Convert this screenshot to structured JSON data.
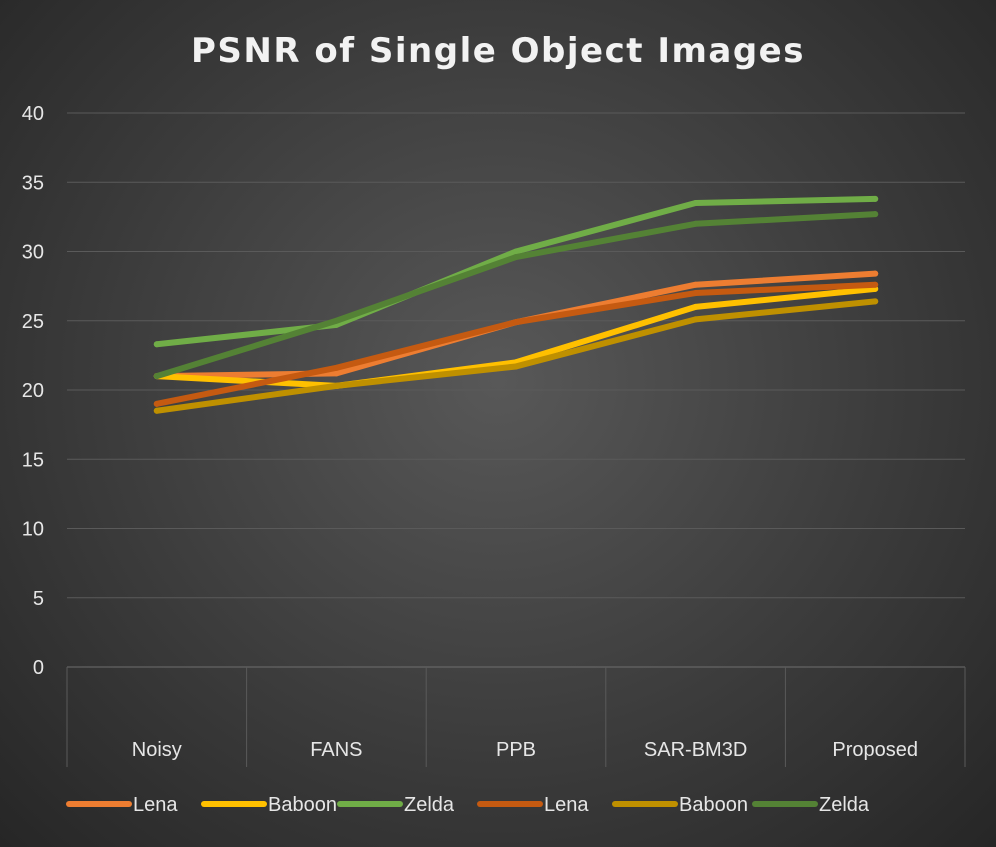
{
  "chart_data": {
    "type": "line",
    "title": "PSNR of Single Object Images",
    "xlabel": "",
    "ylabel": "",
    "categories": [
      "Noisy",
      "FANS",
      "PPB",
      "SAR-BM3D",
      "Proposed"
    ],
    "ylim": [
      0,
      40
    ],
    "yticks": [
      0,
      5,
      10,
      15,
      20,
      25,
      30,
      35,
      40
    ],
    "grid": true,
    "legend_position": "bottom",
    "series": [
      {
        "name": "Lena",
        "color": "#ed7d31",
        "values": [
          21.0,
          21.2,
          24.9,
          27.6,
          28.4
        ]
      },
      {
        "name": "Baboon",
        "color": "#ffc000",
        "values": [
          21.0,
          20.3,
          22.0,
          26.0,
          27.3
        ]
      },
      {
        "name": "Zelda",
        "color": "#70ad47",
        "values": [
          23.3,
          24.7,
          30.0,
          33.5,
          33.8
        ]
      },
      {
        "name": "Lena",
        "color": "#c55a11",
        "values": [
          19.0,
          21.6,
          24.9,
          27.0,
          27.6
        ]
      },
      {
        "name": "Baboon",
        "color": "#bf9000",
        "values": [
          18.5,
          20.3,
          21.7,
          25.1,
          26.4
        ]
      },
      {
        "name": "Zelda",
        "color": "#548235",
        "values": [
          21.0,
          25.0,
          29.6,
          32.0,
          32.7
        ]
      }
    ]
  }
}
